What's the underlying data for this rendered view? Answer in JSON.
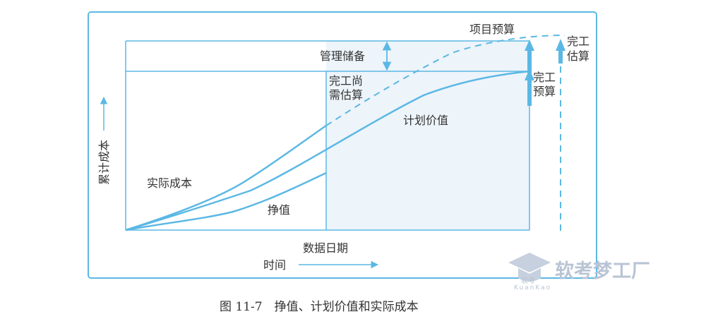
{
  "labels": {
    "project_budget": "项目预算",
    "management_reserve": "管理储备",
    "etc_line1": "完工尚",
    "etc_line2": "需估算",
    "bac_line1": "完工",
    "bac_line2": "预算",
    "eac_line1": "完工",
    "eac_line2": "估算",
    "planned_value": "计划价值",
    "actual_cost": "实际成本",
    "earned_value": "挣值",
    "y_axis": "累计成本",
    "data_date": "数据日期",
    "x_axis": "时间"
  },
  "caption": "图 11-7　挣值、计划价值和实际成本",
  "watermark": {
    "text": "软考梦工厂",
    "logo_text": "软考",
    "sub": "KuanKao"
  },
  "colors": {
    "line": "#5bb8e4",
    "shade": "#edf4fa",
    "text": "#333333",
    "watermark": "#b9c4d4"
  }
}
